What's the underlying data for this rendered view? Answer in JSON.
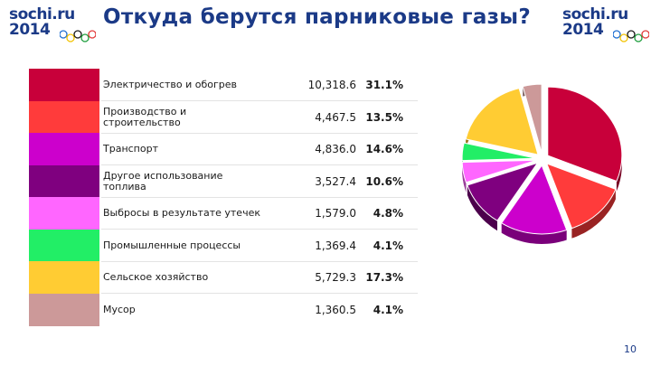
{
  "header": {
    "title": "Откуда берутся парниковые газы?",
    "logo_line1": "sochi.ru",
    "logo_line2": "2014"
  },
  "colors": {
    "brand": "#1b3a87",
    "rings": [
      "#1f6fd1",
      "#f2c300",
      "#1a1a1a",
      "#1e9e3d",
      "#e23b3b"
    ]
  },
  "chart_data": {
    "type": "pie",
    "title": "",
    "categories": [
      "Электричество и обогрев",
      "Производство и строительство",
      "Транспорт",
      "Другое использование топлива",
      "Выбросы в результате утечек",
      "Промышленные процессы",
      "Сельское хозяйство",
      "Мусор"
    ],
    "values": [
      10318.6,
      4467.5,
      4836.0,
      3527.4,
      1579.0,
      1369.4,
      5729.3,
      1360.5
    ],
    "value_labels": [
      "10,318.6",
      "4,467.5",
      "4,836.0",
      "3,527.4",
      "1,579.0",
      "1,369.4",
      "5,729.3",
      "1,360.5"
    ],
    "percent_labels": [
      "31.1%",
      "13.5%",
      "14.6%",
      "10.6%",
      "4.8%",
      "4.1%",
      "17.3%",
      "4.1%"
    ],
    "colors": [
      "#c8003a",
      "#ff3b3b",
      "#cc00cc",
      "#7f007f",
      "#ff66ff",
      "#22ee66",
      "#ffcc33",
      "#cc9999"
    ],
    "style": "3d-exploded",
    "legend": "left-table"
  },
  "footer": {
    "page_number": "10"
  }
}
